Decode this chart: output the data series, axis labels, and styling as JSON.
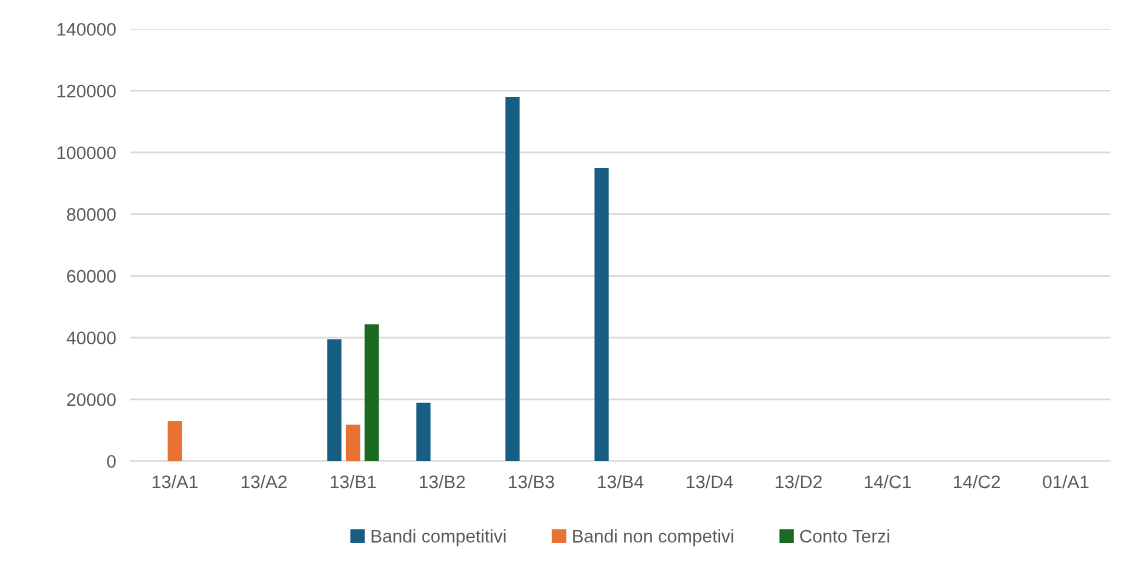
{
  "chart_data": {
    "type": "bar",
    "categories": [
      "13/A1",
      "13/A2",
      "13/B1",
      "13/B2",
      "13/B3",
      "13/B4",
      "13/D4",
      "13/D2",
      "14/C1",
      "14/C2",
      "01/A1"
    ],
    "series": [
      {
        "name": "Bandi competitivi",
        "color": "#175e82",
        "values": [
          null,
          null,
          39500,
          18900,
          118000,
          95000,
          null,
          null,
          null,
          null,
          null
        ]
      },
      {
        "name": "Bandi non competivi",
        "color": "#e97132",
        "values": [
          13000,
          null,
          11800,
          null,
          null,
          null,
          null,
          null,
          null,
          null,
          null
        ]
      },
      {
        "name": "Conto Terzi",
        "color": "#1b6a22",
        "values": [
          null,
          null,
          44300,
          null,
          null,
          null,
          null,
          null,
          null,
          null,
          null
        ]
      }
    ],
    "ylim": [
      0,
      140000
    ],
    "yticks": [
      0,
      20000,
      40000,
      60000,
      80000,
      100000,
      120000,
      140000
    ],
    "grid": "y",
    "legend": "bottom"
  }
}
